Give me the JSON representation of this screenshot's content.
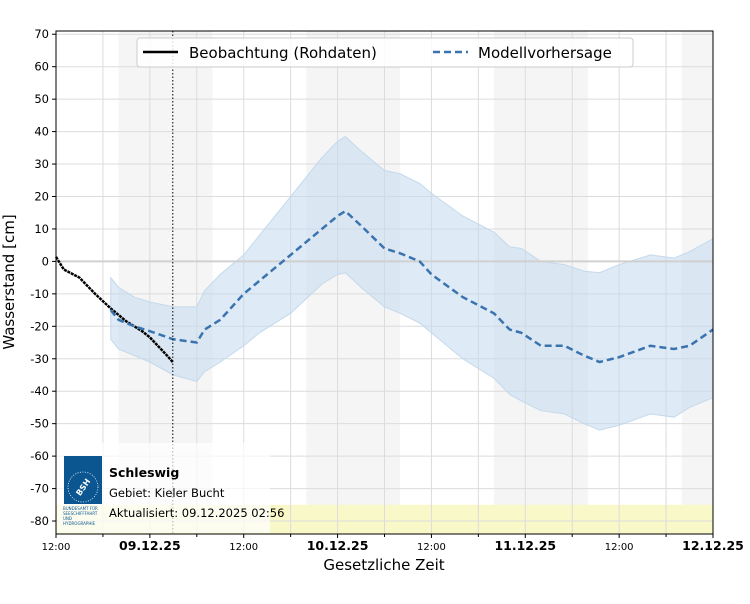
{
  "chart_data": {
    "type": "line",
    "title": "",
    "xlabel": "Gesetzliche Zeit",
    "ylabel": "Wasserstand [cm]",
    "xlim": [
      "2025-12-08T12:00",
      "2025-12-12T00:00"
    ],
    "ylim": [
      -84,
      71
    ],
    "yticks": [
      70,
      60,
      50,
      40,
      30,
      20,
      10,
      0,
      -10,
      -20,
      -30,
      -40,
      -50,
      -60,
      -70,
      -80
    ],
    "xticks": [
      {
        "t": "2025-12-08T12:00",
        "label": "12:00",
        "bold": false
      },
      {
        "t": "2025-12-09T00:00",
        "label": "09.12.25",
        "bold": true
      },
      {
        "t": "2025-12-09T12:00",
        "label": "12:00",
        "bold": false
      },
      {
        "t": "2025-12-10T00:00",
        "label": "10.12.25",
        "bold": true
      },
      {
        "t": "2025-12-10T12:00",
        "label": "12:00",
        "bold": false
      },
      {
        "t": "2025-12-11T00:00",
        "label": "11.12.25",
        "bold": true
      },
      {
        "t": "2025-12-11T12:00",
        "label": "12:00",
        "bold": false
      },
      {
        "t": "2025-12-12T00:00",
        "label": "12.12.25",
        "bold": true
      }
    ],
    "grid": true,
    "legend": "top",
    "night_shading": [
      [
        "2025-12-08T20:00",
        "2025-12-09T08:00"
      ],
      [
        "2025-12-09T20:00",
        "2025-12-10T08:00"
      ],
      [
        "2025-12-10T20:00",
        "2025-12-11T08:00"
      ],
      [
        "2025-12-11T20:00",
        "2025-12-12T00:00"
      ]
    ],
    "now_marker": "2025-12-09T02:56",
    "warning_band": [
      -84,
      -75
    ],
    "colors": {
      "observation": "#000000",
      "forecast": "#3a74b0",
      "band": "#c3d9ec",
      "night": "#f5f5f5",
      "warning": "#f8f8c8"
    },
    "series": [
      {
        "name": "Beobachtung (Rohdaten)",
        "style": "solid",
        "points": [
          [
            "2025-12-08T12:00",
            1.4
          ],
          [
            "2025-12-08T13:00",
            -2.5
          ],
          [
            "2025-12-08T15:00",
            -5
          ],
          [
            "2025-12-08T17:00",
            -10
          ],
          [
            "2025-12-08T19:00",
            -14.5
          ],
          [
            "2025-12-08T21:00",
            -18.5
          ],
          [
            "2025-12-08T23:00",
            -21.5
          ],
          [
            "2025-12-09T00:00",
            -23.4
          ],
          [
            "2025-12-09T02:00",
            -28.5
          ],
          [
            "2025-12-09T02:56",
            -31
          ]
        ]
      },
      {
        "name": "Modellvorhersage",
        "style": "dashed",
        "points": [
          [
            "2025-12-08T19:00",
            -15
          ],
          [
            "2025-12-08T20:00",
            -18
          ],
          [
            "2025-12-08T22:00",
            -20
          ],
          [
            "2025-12-09T00:00",
            -21.5
          ],
          [
            "2025-12-09T03:00",
            -24
          ],
          [
            "2025-12-09T06:00",
            -25
          ],
          [
            "2025-12-09T07:00",
            -21
          ],
          [
            "2025-12-09T09:00",
            -18
          ],
          [
            "2025-12-09T12:00",
            -10
          ],
          [
            "2025-12-09T14:00",
            -6
          ],
          [
            "2025-12-09T18:00",
            2
          ],
          [
            "2025-12-09T22:00",
            10
          ],
          [
            "2025-12-10T00:00",
            14
          ],
          [
            "2025-12-10T01:00",
            15.5
          ],
          [
            "2025-12-10T03:00",
            11
          ],
          [
            "2025-12-10T06:00",
            4
          ],
          [
            "2025-12-10T08:00",
            2.5
          ],
          [
            "2025-12-10T10:30",
            0
          ],
          [
            "2025-12-10T12:00",
            -4
          ],
          [
            "2025-12-10T16:00",
            -11
          ],
          [
            "2025-12-10T20:00",
            -16
          ],
          [
            "2025-12-10T22:00",
            -21
          ],
          [
            "2025-12-10T23:30",
            -22
          ],
          [
            "2025-12-11T02:00",
            -26
          ],
          [
            "2025-12-11T05:00",
            -26
          ],
          [
            "2025-12-11T07:30",
            -29
          ],
          [
            "2025-12-11T09:30",
            -31
          ],
          [
            "2025-12-11T12:00",
            -29.5
          ],
          [
            "2025-12-11T16:00",
            -26
          ],
          [
            "2025-12-11T19:00",
            -27
          ],
          [
            "2025-12-11T21:00",
            -26
          ],
          [
            "2025-12-12T00:00",
            -21
          ]
        ],
        "band_upper": [
          -5,
          -8,
          -11,
          -12.5,
          -14,
          -14,
          -9,
          -4,
          2,
          8,
          20,
          32,
          37,
          38.5,
          34,
          28,
          27,
          24,
          21,
          14,
          9,
          4.5,
          4,
          0,
          -1,
          -3,
          -3.5,
          -1,
          2,
          1,
          3,
          7
        ],
        "band_lower": [
          -24,
          -27,
          -29,
          -31,
          -35,
          -37,
          -34,
          -31,
          -26,
          -22,
          -16,
          -7,
          -4,
          -3.5,
          -8,
          -14,
          -16,
          -19,
          -22,
          -30,
          -36,
          -41,
          -43,
          -46,
          -47,
          -50,
          -52,
          -50.5,
          -47,
          -48,
          -45,
          -42
        ]
      }
    ]
  },
  "info_box": {
    "station": "Schleswig",
    "area": "Gebiet: Kieler Bucht",
    "updated": "Aktualisiert: 09.12.2025 02:56",
    "logo_text": "BSH",
    "logo_subtext": "BUNDESAMT FÜR SEESCHIFFFAHRT UND HYDROGRAPHIE"
  }
}
